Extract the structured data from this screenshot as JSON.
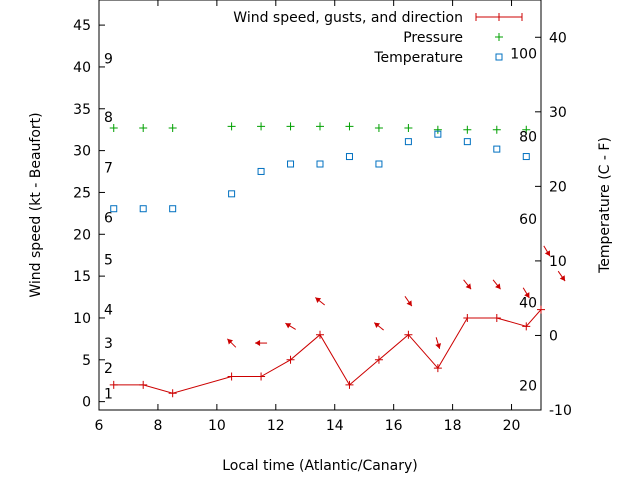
{
  "chart_data": {
    "type": "line",
    "xlabel": "Local time (Atlantic/Canary)",
    "ylabel": "Wind speed (kt - Beaufort)",
    "y2label": "Temperature (C - F)",
    "xlim": [
      6,
      21
    ],
    "ylim": [
      -1,
      48
    ],
    "y2lim": [
      -10,
      45
    ],
    "x_ticks": [
      6,
      8,
      10,
      12,
      14,
      16,
      18,
      20
    ],
    "y_ticks": [
      0,
      5,
      10,
      15,
      20,
      25,
      30,
      35,
      40,
      45
    ],
    "y2_ticks": [
      -10,
      0,
      10,
      20,
      30,
      40
    ],
    "beaufort_labels": [
      {
        "label": "1",
        "kt": 1
      },
      {
        "label": "2",
        "kt": 4
      },
      {
        "label": "3",
        "kt": 7
      },
      {
        "label": "4",
        "kt": 11
      },
      {
        "label": "5",
        "kt": 17
      },
      {
        "label": "6",
        "kt": 22
      },
      {
        "label": "7",
        "kt": 28
      },
      {
        "label": "8",
        "kt": 34
      },
      {
        "label": "9",
        "kt": 41
      }
    ],
    "fahrenheit_labels": [
      {
        "label": "20",
        "temp_c": -6.7
      },
      {
        "label": "40",
        "temp_c": 4.4
      },
      {
        "label": "60",
        "temp_c": 15.6
      },
      {
        "label": "80",
        "temp_c": 26.7
      },
      {
        "label": "100",
        "temp_c": 37.8
      }
    ],
    "series": [
      {
        "name": "Wind speed, gusts, and direction",
        "color": "#cc0000",
        "x": [
          6.5,
          7.5,
          8.5,
          10.5,
          11.5,
          12.5,
          13.5,
          14.5,
          15.5,
          16.5,
          17.5,
          18.5,
          19.5,
          20.5,
          21.0
        ],
        "values": [
          2,
          2,
          1,
          3,
          3,
          5,
          8,
          2,
          5,
          8,
          4,
          10,
          10,
          9,
          11
        ]
      },
      {
        "name": "Pressure",
        "color": "#00a000",
        "x": [
          6.5,
          7.5,
          8.5,
          10.5,
          11.5,
          12.5,
          13.5,
          14.5,
          15.5,
          16.5,
          17.5,
          18.5,
          19.5,
          20.5
        ],
        "values": [
          32.7,
          32.7,
          32.7,
          32.9,
          32.9,
          32.9,
          32.9,
          32.9,
          32.7,
          32.7,
          32.5,
          32.5,
          32.5,
          32.5
        ]
      },
      {
        "name": "Temperature",
        "color": "#0070c0",
        "x": [
          6.5,
          7.5,
          8.5,
          10.5,
          11.5,
          12.5,
          13.5,
          14.5,
          15.5,
          16.5,
          17.5,
          18.5,
          19.5,
          20.5
        ],
        "values": [
          17,
          17,
          17,
          19,
          22,
          23,
          23,
          24,
          23,
          26,
          27,
          26,
          25,
          24
        ]
      }
    ],
    "wind_directions": [
      {
        "x": 10.5,
        "kt": 7,
        "dx": -1,
        "dy": -1
      },
      {
        "x": 11.5,
        "kt": 7,
        "dx": -1,
        "dy": 0
      },
      {
        "x": 12.5,
        "kt": 9,
        "dx": -1,
        "dy": -0.6
      },
      {
        "x": 13.5,
        "kt": 12,
        "dx": -1,
        "dy": -0.8
      },
      {
        "x": 15.5,
        "kt": 9,
        "dx": -1,
        "dy": -0.8
      },
      {
        "x": 16.5,
        "kt": 12,
        "dx": 0.7,
        "dy": 1
      },
      {
        "x": 17.5,
        "kt": 7,
        "dx": 0.3,
        "dy": 1
      },
      {
        "x": 18.5,
        "kt": 14,
        "dx": 0.8,
        "dy": 1
      },
      {
        "x": 19.5,
        "kt": 14,
        "dx": 0.8,
        "dy": 1
      },
      {
        "x": 20.5,
        "kt": 13,
        "dx": 0.6,
        "dy": 1
      },
      {
        "x": 21.2,
        "kt": 18,
        "dx": 0.6,
        "dy": 1
      },
      {
        "x": 21.7,
        "kt": 15,
        "dx": 0.7,
        "dy": 1
      }
    ]
  }
}
